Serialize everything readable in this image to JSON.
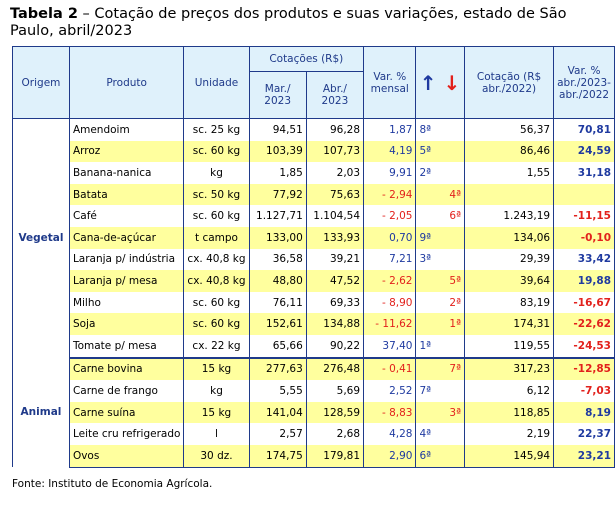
{
  "title": {
    "label": "Tabela 2",
    "text": " – Cotação de preços dos produtos e suas variações, estado de São Paulo, abril/2023"
  },
  "headers": {
    "origem": "Origem",
    "produto": "Produto",
    "unidade": "Unidade",
    "cotacoes": "Cotações (R$)",
    "mar": "Mar./ 2023",
    "abr": "Abr./ 2023",
    "var_mensal": "Var. % mensal",
    "up_icon": "arrow-up-icon",
    "down_icon": "arrow-down-icon",
    "cotacao_2022": "Cotação (R$ abr./2022)",
    "var_anual": "Var. % abr./2023- abr./2022"
  },
  "colors": {
    "header_bg": "#dff1fb",
    "highlight_row": "#ffff9e",
    "positive": "#1f3aa0",
    "negative": "#e2211c",
    "border": "#1f3a8a"
  },
  "groups": [
    {
      "origem": "Vegetal",
      "rows": [
        {
          "produto": "Amendoim",
          "unidade": "sc. 25 kg",
          "mar": "94,51",
          "abr": "96,28",
          "var": "1,87",
          "up": "8ª",
          "down": "",
          "cot22": "56,37",
          "var22": "70,81",
          "hl": false
        },
        {
          "produto": "Arroz",
          "unidade": "sc. 60 kg",
          "mar": "103,39",
          "abr": "107,73",
          "var": "4,19",
          "up": "5ª",
          "down": "",
          "cot22": "86,46",
          "var22": "24,59",
          "hl": true
        },
        {
          "produto": "Banana-nanica",
          "unidade": "kg",
          "mar": "1,85",
          "abr": "2,03",
          "var": "9,91",
          "up": "2ª",
          "down": "",
          "cot22": "1,55",
          "var22": "31,18",
          "hl": false
        },
        {
          "produto": "Batata",
          "unidade": "sc. 50 kg",
          "mar": "77,92",
          "abr": "75,63",
          "var": "- 2,94",
          "up": "",
          "down": "4ª",
          "cot22": "",
          "var22": "",
          "hl": true
        },
        {
          "produto": "Café",
          "unidade": "sc. 60 kg",
          "mar": "1.127,71",
          "abr": "1.104,54",
          "var": "- 2,05",
          "up": "",
          "down": "6ª",
          "cot22": "1.243,19",
          "var22": "-11,15",
          "hl": false
        },
        {
          "produto": "Cana-de-açúcar",
          "unidade": "t campo",
          "mar": "133,00",
          "abr": "133,93",
          "var": "0,70",
          "up": "9ª",
          "down": "",
          "cot22": "134,06",
          "var22": "-0,10",
          "hl": true
        },
        {
          "produto": "Laranja p/ indústria",
          "unidade": "cx. 40,8 kg",
          "mar": "36,58",
          "abr": "39,21",
          "var": "7,21",
          "up": "3ª",
          "down": "",
          "cot22": "29,39",
          "var22": "33,42",
          "hl": false
        },
        {
          "produto": "Laranja p/ mesa",
          "unidade": "cx. 40,8 kg",
          "mar": "48,80",
          "abr": "47,52",
          "var": "- 2,62",
          "up": "",
          "down": "5ª",
          "cot22": "39,64",
          "var22": "19,88",
          "hl": true
        },
        {
          "produto": "Milho",
          "unidade": "sc. 60 kg",
          "mar": "76,11",
          "abr": "69,33",
          "var": "- 8,90",
          "up": "",
          "down": "2ª",
          "cot22": "83,19",
          "var22": "-16,67",
          "hl": false
        },
        {
          "produto": "Soja",
          "unidade": "sc. 60 kg",
          "mar": "152,61",
          "abr": "134,88",
          "var": "- 11,62",
          "up": "",
          "down": "1ª",
          "cot22": "174,31",
          "var22": "-22,62",
          "hl": true
        },
        {
          "produto": "Tomate p/ mesa",
          "unidade": "cx. 22 kg",
          "mar": "65,66",
          "abr": "90,22",
          "var": "37,40",
          "up": "1ª",
          "down": "",
          "cot22": "119,55",
          "var22": "-24,53",
          "hl": false
        }
      ]
    },
    {
      "origem": "Animal",
      "rows": [
        {
          "produto": "Carne bovina",
          "unidade": "15 kg",
          "mar": "277,63",
          "abr": "276,48",
          "var": "- 0,41",
          "up": "",
          "down": "7ª",
          "cot22": "317,23",
          "var22": "-12,85",
          "hl": true
        },
        {
          "produto": "Carne de frango",
          "unidade": "kg",
          "mar": "5,55",
          "abr": "5,69",
          "var": "2,52",
          "up": "7ª",
          "down": "",
          "cot22": "6,12",
          "var22": "-7,03",
          "hl": false
        },
        {
          "produto": "Carne suína",
          "unidade": "15 kg",
          "mar": "141,04",
          "abr": "128,59",
          "var": "- 8,83",
          "up": "",
          "down": "3ª",
          "cot22": "118,85",
          "var22": "8,19",
          "hl": true
        },
        {
          "produto": "Leite cru refrigerado",
          "unidade": "l",
          "mar": "2,57",
          "abr": "2,68",
          "var": "4,28",
          "up": "4ª",
          "down": "",
          "cot22": "2,19",
          "var22": "22,37",
          "hl": false
        },
        {
          "produto": "Ovos",
          "unidade": "30 dz.",
          "mar": "174,75",
          "abr": "179,81",
          "var": "2,90",
          "up": "6ª",
          "down": "",
          "cot22": "145,94",
          "var22": "23,21",
          "hl": true
        }
      ]
    }
  ],
  "source": "Fonte: Instituto de Economia Agrícola."
}
